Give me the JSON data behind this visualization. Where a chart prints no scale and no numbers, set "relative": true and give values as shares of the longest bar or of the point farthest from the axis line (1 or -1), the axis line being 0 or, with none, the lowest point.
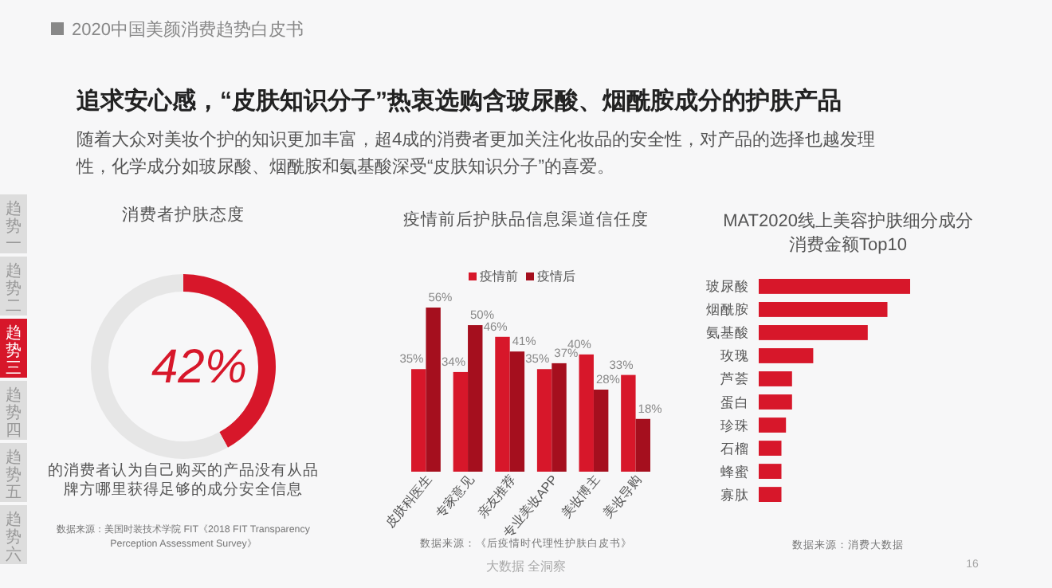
{
  "chart_data": [
    {
      "type": "other",
      "title": "追求安心感，“皮肤知识分子”热衷选购含玻尿酸、烟酰胺成分的护肤产品",
      "subtitle": "随着大众对美妆个护的知识更加丰富，超4成的消费者更加关注化妆品的安全性，对产品的选择也越发理性，化学成分如玻尿酸、烟酰胺和氨基酸深受“皮肤知识分子”的喜爱。",
      "annotations": [
        "2020中国美颜消费趋势白皮书",
        "趋势一",
        "趋势二",
        "趋势三",
        "趋势四",
        "趋势五",
        "趋势六",
        "大数据 全洞察",
        "16"
      ]
    },
    {
      "type": "donut",
      "title": "消费者护肤态度",
      "categories": [
        null,
        null
      ],
      "values": [
        42,
        58
      ],
      "colors": [
        "#d7172a",
        "#e6e6e6"
      ],
      "value_labels": [
        "42%",
        null
      ],
      "annotations": [
        "的消费者认为自己购买的产品没有从品牌方哪里获得足够的成分安全信息",
        "数据来源：美国时装技术学院 FIT《2018 FIT Transparency Perception Assessment Survey》"
      ]
    },
    {
      "type": "bar",
      "title": "疫情前后护肤品信息渠道信任度",
      "categories": [
        "皮肤科医生",
        "专家意见",
        "亲友推荐",
        "专业美妆APP",
        "美妆博主",
        "美妆导购"
      ],
      "legend": "top",
      "series": [
        {
          "name": "疫情前",
          "color": "#d7172a",
          "values": [
            35,
            34,
            46,
            35,
            40,
            33
          ],
          "value_labels": [
            "35%",
            "34%",
            "46%",
            "35%",
            "40%",
            "33%"
          ]
        },
        {
          "name": "疫情后",
          "color": "#a50f1e",
          "values": [
            56,
            50,
            41,
            37,
            28,
            18
          ],
          "value_labels": [
            "56%",
            "50%",
            "41%",
            "37%",
            "28%",
            "18%"
          ]
        }
      ],
      "annotations": [
        "数据来源：《后疫情时代理性护肤白皮书》"
      ]
    },
    {
      "type": "bar",
      "orientation": "horizontal",
      "relative": true,
      "title": "MAT2020线上美容护肤细分成分消费金额Top10",
      "categories": [
        "玻尿酸",
        "烟酰胺",
        "氨基酸",
        "玫瑰",
        "芦荟",
        "蛋白",
        "珍珠",
        "石榴",
        "蜂蜜",
        "寡肽"
      ],
      "values": [
        1,
        0.85,
        0.72,
        0.36,
        0.22,
        0.22,
        0.18,
        0.15,
        0.15,
        0.15
      ],
      "color": "#d7172a",
      "annotations": [
        "数据来源：消费大数据"
      ]
    }
  ]
}
